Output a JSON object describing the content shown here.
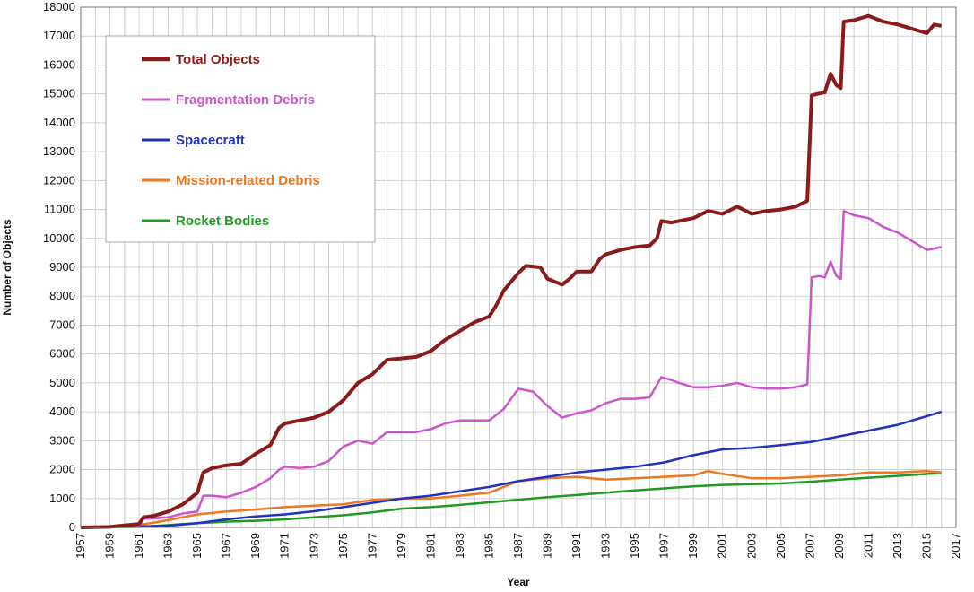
{
  "chart_data": {
    "type": "line",
    "title": "",
    "xlabel": "Year",
    "ylabel": "Number of Objects",
    "xlim": [
      1957,
      2017
    ],
    "ylim": [
      0,
      18000
    ],
    "grid": true,
    "legend_position": "top-left",
    "x_ticks": [
      "1957",
      "1959",
      "1961",
      "1963",
      "1965",
      "1967",
      "1969",
      "1971",
      "1973",
      "1975",
      "1977",
      "1979",
      "1981",
      "1983",
      "1985",
      "1987",
      "1989",
      "1991",
      "1993",
      "1995",
      "1997",
      "1999",
      "2001",
      "2003",
      "2005",
      "2007",
      "2009",
      "2011",
      "2013",
      "2015",
      "2017"
    ],
    "y_ticks": [
      "0",
      "1000",
      "2000",
      "3000",
      "4000",
      "5000",
      "6000",
      "7000",
      "8000",
      "9000",
      "10000",
      "11000",
      "12000",
      "13000",
      "14000",
      "15000",
      "16000",
      "17000",
      "18000"
    ],
    "series": [
      {
        "name": "Total Objects",
        "color": "#8b1a1a",
        "points": [
          [
            1957,
            0
          ],
          [
            1959,
            20
          ],
          [
            1961,
            120
          ],
          [
            1961.3,
            350
          ],
          [
            1962,
            400
          ],
          [
            1963,
            550
          ],
          [
            1964,
            800
          ],
          [
            1965,
            1200
          ],
          [
            1965.4,
            1900
          ],
          [
            1966,
            2050
          ],
          [
            1967,
            2150
          ],
          [
            1968,
            2200
          ],
          [
            1969,
            2550
          ],
          [
            1970,
            2850
          ],
          [
            1970.6,
            3450
          ],
          [
            1971,
            3600
          ],
          [
            1972,
            3700
          ],
          [
            1973,
            3800
          ],
          [
            1974,
            4000
          ],
          [
            1975,
            4400
          ],
          [
            1976,
            5000
          ],
          [
            1977,
            5300
          ],
          [
            1978,
            5800
          ],
          [
            1979,
            5850
          ],
          [
            1980,
            5900
          ],
          [
            1981,
            6100
          ],
          [
            1982,
            6500
          ],
          [
            1983,
            6800
          ],
          [
            1984,
            7100
          ],
          [
            1985,
            7300
          ],
          [
            1985.5,
            7700
          ],
          [
            1986,
            8200
          ],
          [
            1987,
            8800
          ],
          [
            1987.5,
            9050
          ],
          [
            1988.5,
            9000
          ],
          [
            1989,
            8600
          ],
          [
            1990,
            8400
          ],
          [
            1990.5,
            8600
          ],
          [
            1991,
            8850
          ],
          [
            1992,
            8850
          ],
          [
            1992.6,
            9300
          ],
          [
            1993,
            9450
          ],
          [
            1994,
            9600
          ],
          [
            1995,
            9700
          ],
          [
            1996,
            9750
          ],
          [
            1996.5,
            10000
          ],
          [
            1996.8,
            10600
          ],
          [
            1997.5,
            10550
          ],
          [
            1998,
            10600
          ],
          [
            1999,
            10700
          ],
          [
            2000,
            10950
          ],
          [
            2001,
            10850
          ],
          [
            2002,
            11100
          ],
          [
            2003,
            10850
          ],
          [
            2004,
            10950
          ],
          [
            2005,
            11000
          ],
          [
            2006,
            11100
          ],
          [
            2006.8,
            11300
          ],
          [
            2007.1,
            14950
          ],
          [
            2007.5,
            15000
          ],
          [
            2008,
            15050
          ],
          [
            2008.4,
            15700
          ],
          [
            2008.8,
            15300
          ],
          [
            2009.1,
            15200
          ],
          [
            2009.3,
            17500
          ],
          [
            2010,
            17550
          ],
          [
            2011,
            17700
          ],
          [
            2012,
            17500
          ],
          [
            2013,
            17400
          ],
          [
            2014,
            17250
          ],
          [
            2015,
            17100
          ],
          [
            2015.5,
            17400
          ],
          [
            2016,
            17350
          ]
        ]
      },
      {
        "name": "Fragmentation Debris",
        "color": "#cc55cc",
        "points": [
          [
            1957,
            0
          ],
          [
            1961,
            60
          ],
          [
            1961.3,
            300
          ],
          [
            1962,
            320
          ],
          [
            1963,
            350
          ],
          [
            1964,
            480
          ],
          [
            1965,
            550
          ],
          [
            1965.4,
            1100
          ],
          [
            1966,
            1100
          ],
          [
            1967,
            1050
          ],
          [
            1968,
            1200
          ],
          [
            1969,
            1400
          ],
          [
            1970,
            1700
          ],
          [
            1970.6,
            2000
          ],
          [
            1971,
            2100
          ],
          [
            1972,
            2050
          ],
          [
            1973,
            2100
          ],
          [
            1974,
            2300
          ],
          [
            1975,
            2800
          ],
          [
            1976,
            3000
          ],
          [
            1977,
            2900
          ],
          [
            1978,
            3300
          ],
          [
            1979,
            3300
          ],
          [
            1980,
            3300
          ],
          [
            1981,
            3400
          ],
          [
            1982,
            3600
          ],
          [
            1983,
            3700
          ],
          [
            1984,
            3700
          ],
          [
            1985,
            3700
          ],
          [
            1985.5,
            3900
          ],
          [
            1986,
            4100
          ],
          [
            1987,
            4800
          ],
          [
            1988,
            4700
          ],
          [
            1989,
            4200
          ],
          [
            1990,
            3800
          ],
          [
            1991,
            3950
          ],
          [
            1992,
            4050
          ],
          [
            1993,
            4300
          ],
          [
            1994,
            4450
          ],
          [
            1995,
            4450
          ],
          [
            1996,
            4500
          ],
          [
            1996.8,
            5200
          ],
          [
            1997.5,
            5100
          ],
          [
            1998,
            5000
          ],
          [
            1999,
            4850
          ],
          [
            2000,
            4850
          ],
          [
            2001,
            4900
          ],
          [
            2002,
            5000
          ],
          [
            2003,
            4850
          ],
          [
            2004,
            4800
          ],
          [
            2005,
            4800
          ],
          [
            2006,
            4850
          ],
          [
            2006.8,
            4950
          ],
          [
            2007.1,
            8650
          ],
          [
            2007.6,
            8700
          ],
          [
            2008,
            8650
          ],
          [
            2008.4,
            9200
          ],
          [
            2008.8,
            8700
          ],
          [
            2009.1,
            8600
          ],
          [
            2009.3,
            10950
          ],
          [
            2010,
            10800
          ],
          [
            2011,
            10700
          ],
          [
            2012,
            10400
          ],
          [
            2013,
            10200
          ],
          [
            2014,
            9900
          ],
          [
            2015,
            9600
          ],
          [
            2015.5,
            9650
          ],
          [
            2016,
            9700
          ]
        ]
      },
      {
        "name": "Spacecraft",
        "color": "#2233bb",
        "points": [
          [
            1957,
            0
          ],
          [
            1961,
            30
          ],
          [
            1963,
            60
          ],
          [
            1965,
            150
          ],
          [
            1967,
            280
          ],
          [
            1969,
            380
          ],
          [
            1971,
            450
          ],
          [
            1973,
            560
          ],
          [
            1975,
            700
          ],
          [
            1977,
            850
          ],
          [
            1979,
            1000
          ],
          [
            1981,
            1100
          ],
          [
            1983,
            1250
          ],
          [
            1985,
            1400
          ],
          [
            1987,
            1600
          ],
          [
            1989,
            1750
          ],
          [
            1991,
            1900
          ],
          [
            1993,
            2000
          ],
          [
            1995,
            2100
          ],
          [
            1997,
            2250
          ],
          [
            1999,
            2500
          ],
          [
            2001,
            2700
          ],
          [
            2003,
            2750
          ],
          [
            2005,
            2850
          ],
          [
            2007,
            2950
          ],
          [
            2009,
            3150
          ],
          [
            2011,
            3350
          ],
          [
            2013,
            3550
          ],
          [
            2015,
            3850
          ],
          [
            2016,
            4000
          ]
        ]
      },
      {
        "name": "Mission-related Debris",
        "color": "#ee7722",
        "points": [
          [
            1957,
            0
          ],
          [
            1961,
            80
          ],
          [
            1963,
            250
          ],
          [
            1965,
            450
          ],
          [
            1967,
            550
          ],
          [
            1969,
            620
          ],
          [
            1971,
            700
          ],
          [
            1973,
            750
          ],
          [
            1975,
            800
          ],
          [
            1977,
            950
          ],
          [
            1979,
            1000
          ],
          [
            1981,
            1000
          ],
          [
            1983,
            1100
          ],
          [
            1985,
            1200
          ],
          [
            1987,
            1600
          ],
          [
            1989,
            1700
          ],
          [
            1991,
            1750
          ],
          [
            1993,
            1650
          ],
          [
            1995,
            1700
          ],
          [
            1997,
            1750
          ],
          [
            1999,
            1800
          ],
          [
            2000,
            1950
          ],
          [
            2001,
            1850
          ],
          [
            2003,
            1700
          ],
          [
            2005,
            1700
          ],
          [
            2007,
            1750
          ],
          [
            2009,
            1800
          ],
          [
            2011,
            1900
          ],
          [
            2013,
            1900
          ],
          [
            2015,
            1950
          ],
          [
            2016,
            1900
          ]
        ]
      },
      {
        "name": "Rocket Bodies",
        "color": "#229922",
        "points": [
          [
            1957,
            0
          ],
          [
            1961,
            20
          ],
          [
            1963,
            80
          ],
          [
            1965,
            150
          ],
          [
            1967,
            200
          ],
          [
            1969,
            230
          ],
          [
            1971,
            280
          ],
          [
            1973,
            350
          ],
          [
            1975,
            420
          ],
          [
            1977,
            520
          ],
          [
            1979,
            650
          ],
          [
            1981,
            700
          ],
          [
            1983,
            780
          ],
          [
            1985,
            870
          ],
          [
            1987,
            960
          ],
          [
            1989,
            1050
          ],
          [
            1991,
            1120
          ],
          [
            1993,
            1200
          ],
          [
            1995,
            1280
          ],
          [
            1997,
            1350
          ],
          [
            1999,
            1420
          ],
          [
            2001,
            1470
          ],
          [
            2003,
            1500
          ],
          [
            2005,
            1520
          ],
          [
            2007,
            1580
          ],
          [
            2009,
            1650
          ],
          [
            2011,
            1720
          ],
          [
            2013,
            1780
          ],
          [
            2015,
            1850
          ],
          [
            2016,
            1880
          ]
        ]
      }
    ]
  }
}
